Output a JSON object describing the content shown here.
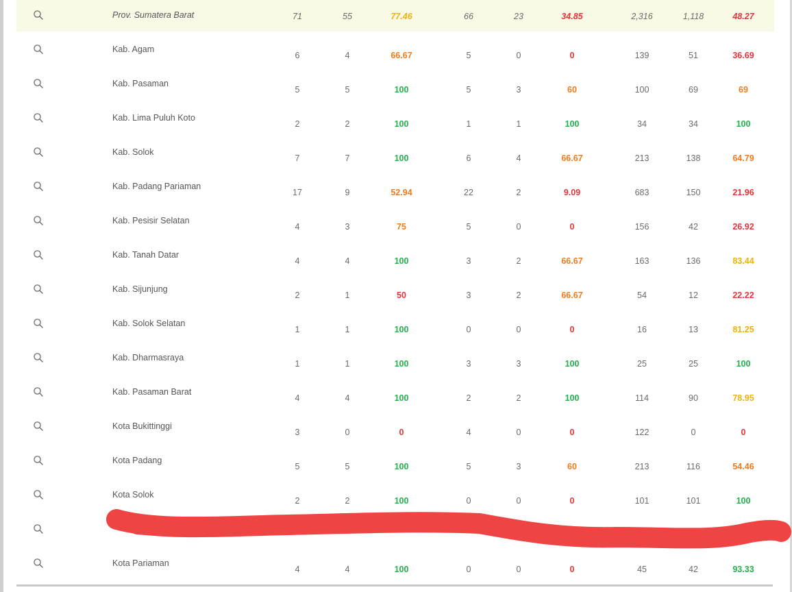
{
  "colors": {
    "green": "#22b14c",
    "orange": "#f07b1d",
    "red": "#e8333a",
    "yellow": "#efb20b",
    "highlight_row": "#f8fae6",
    "redaction": "#ef4444"
  },
  "rows": [
    {
      "name": "Prov. Sumatera Barat",
      "v": [
        "71",
        "55",
        "77.46",
        "66",
        "23",
        "34.85",
        "2,316",
        "1,118",
        "48.27"
      ],
      "c": [
        "yellow",
        "red",
        "red"
      ],
      "highlight": true
    },
    {
      "name": "Kab. Agam",
      "v": [
        "6",
        "4",
        "66.67",
        "5",
        "0",
        "0",
        "139",
        "51",
        "36.69"
      ],
      "c": [
        "orange",
        "red",
        "red"
      ]
    },
    {
      "name": "Kab. Pasaman",
      "v": [
        "5",
        "5",
        "100",
        "5",
        "3",
        "60",
        "100",
        "69",
        "69"
      ],
      "c": [
        "green",
        "orange",
        "orange"
      ]
    },
    {
      "name": "Kab. Lima Puluh Koto",
      "v": [
        "2",
        "2",
        "100",
        "1",
        "1",
        "100",
        "34",
        "34",
        "100"
      ],
      "c": [
        "green",
        "green",
        "green"
      ]
    },
    {
      "name": "Kab. Solok",
      "v": [
        "7",
        "7",
        "100",
        "6",
        "4",
        "66.67",
        "213",
        "138",
        "64.79"
      ],
      "c": [
        "green",
        "orange",
        "orange"
      ]
    },
    {
      "name": "Kab. Padang Pariaman",
      "v": [
        "17",
        "9",
        "52.94",
        "22",
        "2",
        "9.09",
        "683",
        "150",
        "21.96"
      ],
      "c": [
        "orange",
        "red",
        "red"
      ]
    },
    {
      "name": "Kab. Pesisir Selatan",
      "v": [
        "4",
        "3",
        "75",
        "5",
        "0",
        "0",
        "156",
        "42",
        "26.92"
      ],
      "c": [
        "orange",
        "red",
        "red"
      ]
    },
    {
      "name": "Kab. Tanah Datar",
      "v": [
        "4",
        "4",
        "100",
        "3",
        "2",
        "66.67",
        "163",
        "136",
        "83.44"
      ],
      "c": [
        "green",
        "orange",
        "yellow"
      ]
    },
    {
      "name": "Kab. Sijunjung",
      "v": [
        "2",
        "1",
        "50",
        "3",
        "2",
        "66.67",
        "54",
        "12",
        "22.22"
      ],
      "c": [
        "red",
        "orange",
        "red"
      ]
    },
    {
      "name": "Kab. Solok Selatan",
      "v": [
        "1",
        "1",
        "100",
        "0",
        "0",
        "0",
        "16",
        "13",
        "81.25"
      ],
      "c": [
        "green",
        "red",
        "yellow"
      ]
    },
    {
      "name": "Kab. Dharmasraya",
      "v": [
        "1",
        "1",
        "100",
        "3",
        "3",
        "100",
        "25",
        "25",
        "100"
      ],
      "c": [
        "green",
        "green",
        "green"
      ]
    },
    {
      "name": "Kab. Pasaman Barat",
      "v": [
        "4",
        "4",
        "100",
        "2",
        "2",
        "100",
        "114",
        "90",
        "78.95"
      ],
      "c": [
        "green",
        "green",
        "yellow"
      ]
    },
    {
      "name": "Kota Bukittinggi",
      "v": [
        "3",
        "0",
        "0",
        "4",
        "0",
        "0",
        "122",
        "0",
        "0"
      ],
      "c": [
        "red",
        "red",
        "red"
      ]
    },
    {
      "name": "Kota Padang",
      "v": [
        "5",
        "5",
        "100",
        "5",
        "3",
        "60",
        "213",
        "116",
        "54.46"
      ],
      "c": [
        "green",
        "orange",
        "orange"
      ]
    },
    {
      "name": "Kota Solok",
      "v": [
        "2",
        "2",
        "100",
        "0",
        "0",
        "0",
        "101",
        "101",
        "100"
      ],
      "c": [
        "green",
        "red",
        "green"
      ]
    },
    {
      "name": "",
      "v": [
        "",
        "",
        "",
        "",
        "",
        "",
        "",
        "",
        ""
      ],
      "c": [
        "orange",
        "red",
        "red"
      ],
      "redacted": true
    },
    {
      "name": "Kota Pariaman",
      "v": [
        "4",
        "4",
        "100",
        "0",
        "0",
        "0",
        "45",
        "42",
        "93.33"
      ],
      "c": [
        "green",
        "red",
        "green"
      ]
    }
  ]
}
